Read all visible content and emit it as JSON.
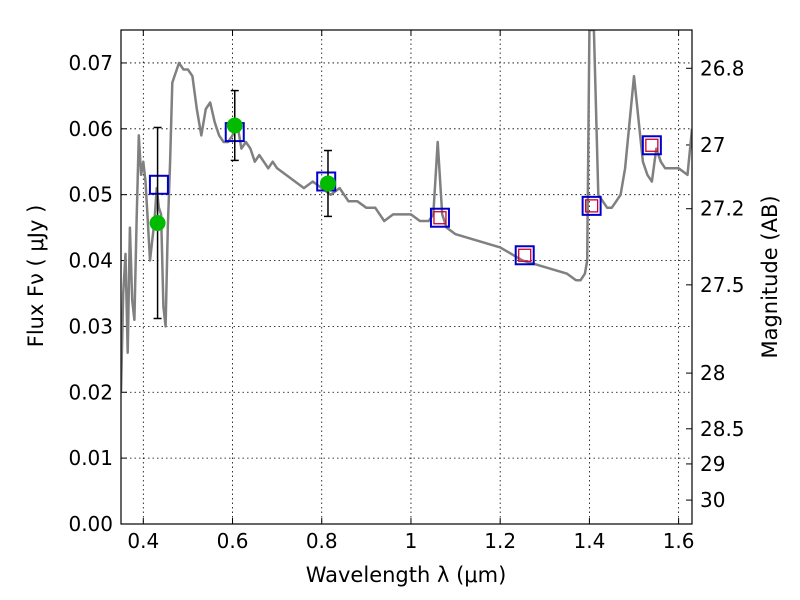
{
  "chart_data": {
    "type": "line",
    "xlabel": "Wavelength  λ (μm)",
    "ylabel": "Flux  Fν  ( μJy )",
    "ylabel_right": "Magnitude (AB)",
    "xlim": [
      0.35,
      1.63
    ],
    "ylim": [
      0.0,
      0.075
    ],
    "grid": true,
    "x_ticks": [
      0.4,
      0.6,
      0.8,
      1.0,
      1.2,
      1.4,
      1.6
    ],
    "x_tick_labels": [
      "0.4",
      "0.6",
      "0.8",
      "1",
      "1.2",
      "1.4",
      "1.6"
    ],
    "y_ticks": [
      0.0,
      0.01,
      0.02,
      0.03,
      0.04,
      0.05,
      0.06,
      0.07
    ],
    "y_tick_labels": [
      "0.00",
      "0.01",
      "0.02",
      "0.03",
      "0.04",
      "0.05",
      "0.06",
      "0.07"
    ],
    "right_ticks": [
      {
        "mag": 26.8,
        "label": "26.8"
      },
      {
        "mag": 27.0,
        "label": "27"
      },
      {
        "mag": 27.2,
        "label": "27.2"
      },
      {
        "mag": 27.5,
        "label": "27.5"
      },
      {
        "mag": 28.0,
        "label": "28"
      },
      {
        "mag": 28.5,
        "label": "28.5"
      },
      {
        "mag": 29.0,
        "label": "29"
      },
      {
        "mag": 30.0,
        "label": "30"
      }
    ],
    "series": [
      {
        "type": "line",
        "color": "#808080",
        "x": [
          0.35,
          0.355,
          0.36,
          0.365,
          0.37,
          0.375,
          0.38,
          0.385,
          0.39,
          0.395,
          0.4,
          0.405,
          0.41,
          0.415,
          0.42,
          0.425,
          0.43,
          0.435,
          0.44,
          0.445,
          0.45,
          0.455,
          0.46,
          0.465,
          0.47,
          0.475,
          0.48,
          0.49,
          0.5,
          0.51,
          0.52,
          0.53,
          0.54,
          0.55,
          0.56,
          0.57,
          0.58,
          0.59,
          0.6,
          0.61,
          0.62,
          0.63,
          0.64,
          0.65,
          0.66,
          0.67,
          0.68,
          0.69,
          0.7,
          0.72,
          0.74,
          0.76,
          0.78,
          0.8,
          0.82,
          0.84,
          0.86,
          0.88,
          0.9,
          0.92,
          0.94,
          0.96,
          0.98,
          1.0,
          1.02,
          1.04,
          1.05,
          1.06,
          1.07,
          1.08,
          1.1,
          1.15,
          1.2,
          1.25,
          1.3,
          1.35,
          1.37,
          1.38,
          1.39,
          1.395,
          1.4,
          1.405,
          1.41,
          1.42,
          1.43,
          1.44,
          1.45,
          1.46,
          1.47,
          1.48,
          1.5,
          1.52,
          1.53,
          1.54,
          1.55,
          1.56,
          1.57,
          1.58,
          1.6,
          1.62,
          1.63
        ],
        "y": [
          0.02,
          0.035,
          0.041,
          0.026,
          0.045,
          0.034,
          0.031,
          0.046,
          0.059,
          0.053,
          0.055,
          0.052,
          0.046,
          0.04,
          0.043,
          0.046,
          0.051,
          0.048,
          0.047,
          0.033,
          0.03,
          0.045,
          0.055,
          0.067,
          0.068,
          0.069,
          0.07,
          0.069,
          0.069,
          0.068,
          0.063,
          0.059,
          0.063,
          0.064,
          0.061,
          0.059,
          0.058,
          0.058,
          0.059,
          0.061,
          0.057,
          0.058,
          0.057,
          0.055,
          0.056,
          0.055,
          0.054,
          0.055,
          0.054,
          0.053,
          0.052,
          0.051,
          0.052,
          0.051,
          0.05,
          0.051,
          0.049,
          0.049,
          0.048,
          0.048,
          0.046,
          0.047,
          0.047,
          0.047,
          0.046,
          0.046,
          0.047,
          0.058,
          0.047,
          0.045,
          0.044,
          0.043,
          0.042,
          0.04,
          0.039,
          0.038,
          0.037,
          0.037,
          0.038,
          0.04,
          0.075,
          0.075,
          0.075,
          0.05,
          0.049,
          0.048,
          0.048,
          0.049,
          0.05,
          0.054,
          0.068,
          0.055,
          0.053,
          0.052,
          0.057,
          0.055,
          0.054,
          0.054,
          0.054,
          0.053,
          0.06
        ]
      }
    ],
    "model_photometry": {
      "marker": "open-square",
      "color": "#0000cc",
      "points": [
        {
          "x": 0.435,
          "y": 0.0515
        },
        {
          "x": 0.605,
          "y": 0.0595
        },
        {
          "x": 0.81,
          "y": 0.052
        },
        {
          "x": 1.065,
          "y": 0.0465
        },
        {
          "x": 1.255,
          "y": 0.0408
        },
        {
          "x": 1.405,
          "y": 0.0483
        },
        {
          "x": 1.54,
          "y": 0.0575
        }
      ]
    },
    "synthetic_photometry": {
      "marker": "open-square-small",
      "color": "#cc0033",
      "points": [
        {
          "x": 1.065,
          "y": 0.0465
        },
        {
          "x": 1.255,
          "y": 0.0408
        },
        {
          "x": 1.405,
          "y": 0.0483
        },
        {
          "x": 1.54,
          "y": 0.0575
        }
      ]
    },
    "observed_photometry": {
      "marker": "filled-circle",
      "color": "#00bb00",
      "points": [
        {
          "x": 0.432,
          "y": 0.0457,
          "yerr": 0.0145
        },
        {
          "x": 0.605,
          "y": 0.0605,
          "yerr": 0.0053
        },
        {
          "x": 0.814,
          "y": 0.0517,
          "yerr": 0.005
        }
      ]
    }
  }
}
